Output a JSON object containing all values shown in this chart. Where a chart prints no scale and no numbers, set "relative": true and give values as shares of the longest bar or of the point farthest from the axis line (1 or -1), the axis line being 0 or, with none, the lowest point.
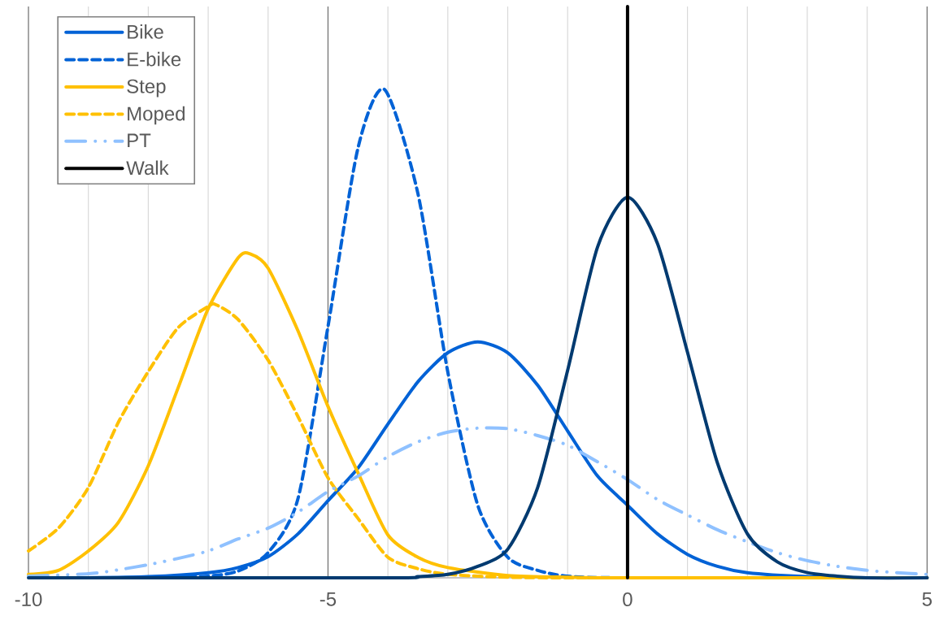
{
  "chart_data": {
    "type": "line",
    "relative": true,
    "xlim": [
      -10,
      5
    ],
    "xticks": [
      {
        "value": -10,
        "label": "-10"
      },
      {
        "value": -9,
        "label": null
      },
      {
        "value": -8,
        "label": null
      },
      {
        "value": -7,
        "label": null
      },
      {
        "value": -6,
        "label": null
      },
      {
        "value": -5,
        "label": "-5"
      },
      {
        "value": -4,
        "label": null
      },
      {
        "value": -3,
        "label": null
      },
      {
        "value": -2,
        "label": null
      },
      {
        "value": -1,
        "label": null
      },
      {
        "value": 0,
        "label": "0"
      },
      {
        "value": 1,
        "label": null
      },
      {
        "value": 2,
        "label": null
      },
      {
        "value": 3,
        "label": null
      },
      {
        "value": 4,
        "label": null
      },
      {
        "value": 5,
        "label": "5"
      }
    ],
    "grid": "x",
    "legend": "top left",
    "series": [
      {
        "name": "Bike",
        "color": "#0062d6",
        "line_style": "solid",
        "x": [
          -9,
          -8,
          -7,
          -6.5,
          -6,
          -5.5,
          -5,
          -4.5,
          -4,
          -3.5,
          -3,
          -2.5,
          -2,
          -1.5,
          -1,
          -0.5,
          0,
          0.5,
          1,
          1.5,
          2,
          3,
          4,
          5
        ],
        "values": [
          0,
          0.002,
          0.009,
          0.018,
          0.037,
          0.077,
          0.135,
          0.192,
          0.269,
          0.343,
          0.394,
          0.413,
          0.394,
          0.337,
          0.257,
          0.178,
          0.127,
          0.077,
          0.041,
          0.02,
          0.009,
          0.002,
          0,
          0
        ]
      },
      {
        "name": "E-bike",
        "color": "#0062d6",
        "line_style": "dashed",
        "x": [
          -8,
          -7,
          -6.5,
          -6,
          -5.5,
          -5,
          -4.5,
          -4.06,
          -3.5,
          -3,
          -2.5,
          -2,
          -1.5,
          -1,
          0,
          5
        ],
        "values": [
          0,
          0.003,
          0.012,
          0.044,
          0.139,
          0.44,
          0.752,
          0.855,
          0.673,
          0.36,
          0.127,
          0.036,
          0.013,
          0.003,
          0,
          0
        ]
      },
      {
        "name": "Step",
        "color": "#ffc000",
        "line_style": "solid",
        "x": [
          -10,
          -9.5,
          -9,
          -8.5,
          -8,
          -7.5,
          -7,
          -6.5,
          -6.3,
          -6,
          -5.5,
          -5,
          -4.5,
          -4,
          -3.5,
          -3,
          -2,
          -1,
          0,
          5
        ],
        "values": [
          0.006,
          0.013,
          0.047,
          0.097,
          0.196,
          0.333,
          0.471,
          0.56,
          0.567,
          0.542,
          0.432,
          0.3,
          0.184,
          0.075,
          0.036,
          0.018,
          0.004,
          0.001,
          0,
          0
        ]
      },
      {
        "name": "Moped",
        "color": "#ffc000",
        "line_style": "dashed",
        "x": [
          -10,
          -9.5,
          -9,
          -8.5,
          -8,
          -7.5,
          -7,
          -6.87,
          -6.5,
          -6,
          -5.5,
          -5,
          -4.5,
          -4,
          -3.5,
          -3,
          -2,
          -1,
          0,
          5
        ],
        "values": [
          0.047,
          0.087,
          0.158,
          0.272,
          0.361,
          0.438,
          0.475,
          0.478,
          0.452,
          0.381,
          0.282,
          0.175,
          0.104,
          0.036,
          0.016,
          0.006,
          0.001,
          0,
          0,
          0
        ]
      },
      {
        "name": "PT",
        "color": "#8fc1ff",
        "line_style": "dashdot",
        "x": [
          -10,
          -9,
          -8.5,
          -8,
          -7.5,
          -7,
          -6.5,
          -6,
          -5.5,
          -5,
          -4.5,
          -4,
          -3.5,
          -3,
          -2.5,
          -2,
          -1.5,
          -1,
          -0.5,
          0,
          0.5,
          1,
          1.5,
          2,
          2.5,
          3,
          3.5,
          4,
          4.5,
          5
        ],
        "values": [
          0.003,
          0.007,
          0.014,
          0.023,
          0.034,
          0.047,
          0.068,
          0.087,
          0.115,
          0.151,
          0.178,
          0.212,
          0.238,
          0.255,
          0.262,
          0.261,
          0.249,
          0.232,
          0.203,
          0.172,
          0.137,
          0.11,
          0.084,
          0.063,
          0.044,
          0.03,
          0.02,
          0.013,
          0.009,
          0.006
        ]
      },
      {
        "color": "#003a70",
        "line_style": "solid",
        "x": [
          -10,
          -4,
          -3.5,
          -3,
          -2.5,
          -2,
          -1.5,
          -1,
          -0.5,
          0,
          0.5,
          1,
          1.5,
          2,
          2.5,
          3,
          3.5,
          4,
          5
        ],
        "values": [
          0,
          0,
          0.002,
          0.006,
          0.02,
          0.05,
          0.158,
          0.363,
          0.579,
          0.666,
          0.585,
          0.395,
          0.201,
          0.077,
          0.028,
          0.009,
          0.003,
          0,
          0
        ]
      },
      {
        "name": "Walk",
        "color": "#000000",
        "line_style": "solid",
        "x": [
          0,
          0
        ],
        "values": [
          0,
          1
        ]
      }
    ]
  }
}
